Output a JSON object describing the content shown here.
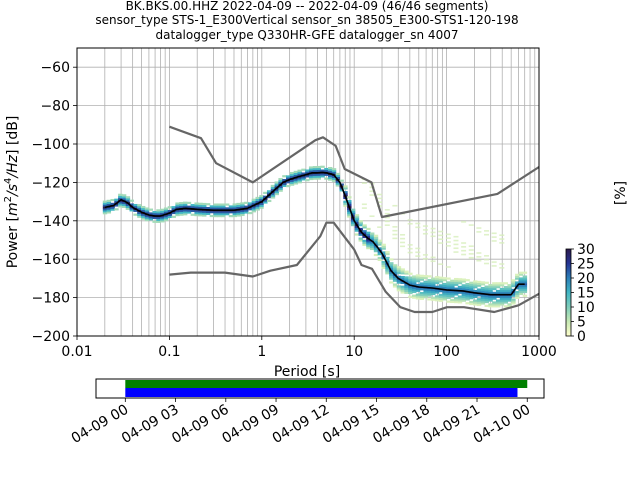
{
  "chart_data": [
    {
      "type": "heatmap",
      "title_lines": [
        "BK.BKS.00.HHZ   2022-04-09 -- 2022-04-09  (46/46 segments)",
        "sensor_type STS-1_E300Vertical sensor_sn 38505_E300-STS1-120-198",
        "datalogger_type Q330HR-GFE datalogger_sn 4007"
      ],
      "xlabel": "Period [s]",
      "ylabel_parts": [
        "Power [",
        "m",
        "2",
        "/s",
        "4",
        "/Hz",
        "] [dB]"
      ],
      "xscale": "log",
      "xlim": [
        0.01,
        1000
      ],
      "ylim": [
        -200,
        -50
      ],
      "x_ticks": [
        0.01,
        0.1,
        1,
        10,
        100,
        1000
      ],
      "x_tick_labels": [
        "0.01",
        "0.1",
        "1",
        "10",
        "100",
        "1000"
      ],
      "y_ticks": [
        -60,
        -80,
        -100,
        -120,
        -140,
        -160,
        -180,
        -200
      ],
      "y_tick_labels": [
        "−60",
        "−80",
        "−100",
        "−120",
        "−140",
        "−160",
        "−180",
        "−200"
      ],
      "grid": true,
      "noise_model_upper": {
        "name": "",
        "color": "#666666",
        "x": [
          0.1,
          0.22,
          0.32,
          0.8,
          3.8,
          4.6,
          6.3,
          7.9,
          15.4,
          20,
          354.8,
          1000
        ],
        "y": [
          -91,
          -97,
          -110,
          -120,
          -98,
          -96.5,
          -101,
          -113,
          -120,
          -138,
          -126,
          -112
        ]
      },
      "noise_model_lower": {
        "name": "",
        "color": "#666666",
        "x": [
          0.1,
          0.17,
          0.4,
          0.8,
          1.24,
          2.4,
          4.3,
          5,
          6,
          10,
          12,
          15.6,
          21.9,
          31.6,
          45,
          70,
          101,
          154,
          328,
          600,
          1000
        ],
        "y": [
          -168,
          -167,
          -167,
          -169,
          -166,
          -163,
          -148,
          -141,
          -141,
          -155,
          -163,
          -165,
          -177,
          -185,
          -187.5,
          -187.5,
          -185,
          -185,
          -187.5,
          -184,
          -178
        ]
      },
      "mean_curve": {
        "name": "",
        "color": "#000000",
        "x": [
          0.02,
          0.025,
          0.03,
          0.035,
          0.04,
          0.05,
          0.06,
          0.07,
          0.08,
          0.1,
          0.12,
          0.15,
          0.2,
          0.3,
          0.5,
          0.7,
          1,
          1.3,
          1.7,
          2,
          2.5,
          3,
          3.5,
          4,
          4.5,
          5,
          6,
          7,
          8,
          9,
          10,
          12,
          14,
          16,
          18,
          20,
          25,
          30,
          40,
          50,
          70,
          100,
          150,
          200,
          300,
          400,
          500,
          600,
          700
        ],
        "y": [
          -133,
          -132,
          -129,
          -130.5,
          -133,
          -135.5,
          -137,
          -137.5,
          -137.5,
          -136,
          -134,
          -133.5,
          -134,
          -134.5,
          -134.5,
          -133.5,
          -130,
          -125,
          -120,
          -118.5,
          -117,
          -116,
          -115,
          -115,
          -114.8,
          -115,
          -116,
          -120,
          -127,
          -134,
          -140,
          -146,
          -149,
          -151,
          -154,
          -157,
          -166,
          -170,
          -173.5,
          -174.5,
          -175,
          -176,
          -176.5,
          -177.5,
          -178.5,
          -178.5,
          -178.5,
          -173,
          -173
        ]
      },
      "colorbar": {
        "label": "[%]",
        "ticks": [
          0,
          5,
          10,
          15,
          20,
          25,
          30
        ],
        "tick_labels": [
          "0",
          "5",
          "10",
          "15",
          "20",
          "25",
          "30"
        ],
        "range": [
          0,
          30
        ],
        "colormap_stops": [
          "#ffffcc",
          "#c7e9b4",
          "#7fcdbb",
          "#41b6c4",
          "#2c7fb8",
          "#253494",
          "#2d1b4e"
        ]
      },
      "coverage_bar": {
        "time_start": "2022-04-09 00:00",
        "time_end": "2022-04-10 00:00",
        "xlim": [
          "2022-04-08 22:15",
          "2022-04-10 01:00"
        ],
        "tick_labels": [
          "04-09 00",
          "04-09 03",
          "04-09 06",
          "04-09 09",
          "04-09 12",
          "04-09 15",
          "04-09 18",
          "04-09 21",
          "04-10 00"
        ],
        "green_span": [
          "2022-04-09 00:00",
          "2022-04-10 00:00"
        ],
        "blue_span": [
          "2022-04-09 00:00",
          "2022-04-09 23:25"
        ],
        "green_color": "#008000",
        "blue_color": "#0000ff"
      }
    }
  ]
}
